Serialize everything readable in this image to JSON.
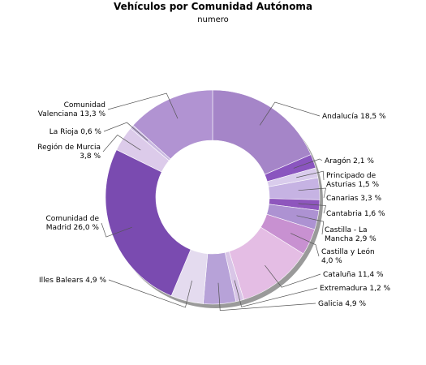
{
  "chart_data": {
    "type": "pie",
    "title": "Vehículos por Comunidad Autónoma",
    "subtitle": "numero",
    "slices": [
      {
        "label": "Andalucía 18,5 %",
        "value": 18.5,
        "color": "#a585c8"
      },
      {
        "label": "Aragón 2,1 %",
        "value": 2.1,
        "color": "#8a55bf"
      },
      {
        "label": "Principado de Asturias 1,5 %",
        "value": 1.5,
        "color": "#d9ccec"
      },
      {
        "label": "Canarias 3,3 %",
        "value": 3.3,
        "color": "#c6b3e3"
      },
      {
        "label": "Cantabria 1,6 %",
        "value": 1.6,
        "color": "#8e56bd"
      },
      {
        "label": "Castilla - La Mancha 2,9 %",
        "value": 2.9,
        "color": "#ad92d2"
      },
      {
        "label": "Castilla y León 4,0 %",
        "value": 4.0,
        "color": "#c891d1"
      },
      {
        "label": "Cataluña 11,4 %",
        "value": 11.4,
        "color": "#e4bde4"
      },
      {
        "label": "Extremadura 1,2 %",
        "value": 1.2,
        "color": "#d9c6e7"
      },
      {
        "label": "Galicia 4,9 %",
        "value": 4.9,
        "color": "#b7a2d8"
      },
      {
        "label": "Illes Balears 4,9 %",
        "value": 4.9,
        "color": "#e4dbef"
      },
      {
        "label": "Comunidad de Madrid 26,0 %",
        "value": 26.0,
        "color": "#7a4bb0"
      },
      {
        "label": "Región de Murcia 3,8 %",
        "value": 3.8,
        "color": "#dccbea"
      },
      {
        "label": "La Rioja 0,6 %",
        "value": 0.6,
        "color": "#c9b8e0"
      },
      {
        "label": "Comunidad Valenciana 13,3 %",
        "value": 13.3,
        "color": "#b193d2"
      }
    ]
  }
}
